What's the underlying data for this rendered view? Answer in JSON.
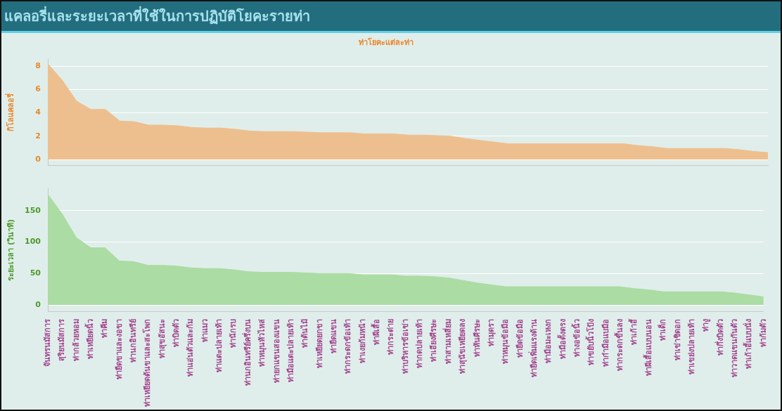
{
  "chart_data": [
    {
      "type": "area",
      "title": "แคลอรี่และระยะเวลาที่ใช้ในการปฏิบัติโยคะรายท่า",
      "subtitle": "ท่าโยคะแต่ละท่า",
      "ylabel": "กิโลแคลอรี่",
      "tick_labels": "y",
      "grid": "y",
      "ylim": [
        -0.5,
        8.6
      ],
      "yticks": [
        0,
        2,
        4,
        6,
        8
      ],
      "series": [
        {
          "color": "#eebf8e",
          "values": [
            8.2,
            6.8,
            5.0,
            4.3,
            4.3,
            3.3,
            3.25,
            2.95,
            2.95,
            2.9,
            2.75,
            2.7,
            2.7,
            2.6,
            2.45,
            2.4,
            2.4,
            2.4,
            2.35,
            2.3,
            2.3,
            2.3,
            2.2,
            2.2,
            2.2,
            2.1,
            2.1,
            2.05,
            2.0,
            1.8,
            1.65,
            1.5,
            1.35,
            1.35,
            1.35,
            1.35,
            1.35,
            1.35,
            1.35,
            1.35,
            1.35,
            1.2,
            1.1,
            0.95,
            0.95,
            0.95,
            0.95,
            0.95,
            0.85,
            0.7,
            0.6
          ]
        }
      ]
    },
    {
      "type": "area",
      "ylabel": "ระยะเวลา (วินาที)",
      "grid": "y",
      "ylim": [
        -10,
        185
      ],
      "yticks": [
        0,
        50,
        100,
        150
      ],
      "categories": [
        "จันทรนมัสการ",
        "สุริยนมัสการ",
        "ท่ากล้วยหอม",
        "ท่าเหยียดนิ้ว",
        "ท่าคีม",
        "ท่ายืดขาและงอขา",
        "ท่านกอินทรีย์",
        "ท่าเหยียดต้นขาและสะโพก",
        "ท่าสุขอัสนะ",
        "ท่าบิดตัว",
        "ท่าแอ่นตัวและก้ม",
        "ท่าแมว",
        "ท่าแตะปลายเท้า",
        "ท่านักรบ",
        "ท่านกอินทรีย์ครึ่งบน",
        "ท่าหมุนหัวไหล่",
        "ท่ายกแขนสองแขน",
        "ท่ามือแตะปลายเท้า",
        "ท่าต้นไม้",
        "ท่าเหยียดยกขา",
        "ท่ายืดแขน",
        "ท่ากระดกข้อเท้า",
        "ท่าเงยก้มหน้า",
        "ท่าผีเสื้อ",
        "ท่ากระต่าย",
        "ท่าบริหารข้อเข่า",
        "ท่ากดปลายเท้า",
        "ท่าเอียงศีรษะ",
        "ท่าสามเหลี่ยม",
        "ท่าสุนัขเหยียดลง",
        "ท่าหันศีรษะ",
        "ท่ามุดรา",
        "ท่าหมุนข้อมือ",
        "ท่ายืดข้อมือ",
        "ท่ายืดเพิ่มแรงด้าน",
        "ท่ามือมะเหงก",
        "ท่ามือตั้งตรง",
        "ท่างอข้อนิ้ว",
        "ท่าขยับนิ้วโป้ง",
        "ท่ากำมือแบมือ",
        "ท่ากระดกขึ้นลง",
        "ท่าเก้าอี้",
        "ท่าผีเสื้อแบบนอน",
        "ท่าเด็ก",
        "ท่าเข่าชิดอก",
        "ท่าเขย่งปลายเท้า",
        "ท่างู",
        "ท่ากึ่งบิดตัว",
        "ท่าวาดแขนกันตัว",
        "ท่าเก้าอี้แบบนั่ง",
        "ท่าก้มตัว"
      ],
      "series": [
        {
          "color": "#abdca3",
          "values": [
            176,
            145,
            107,
            91,
            91,
            70,
            69,
            63,
            63,
            62,
            59,
            58,
            58,
            56,
            53,
            52,
            52,
            52,
            51,
            50,
            50,
            50,
            48,
            48,
            48,
            46,
            46,
            45,
            43,
            39,
            35,
            32,
            29,
            29,
            29,
            29,
            29,
            29,
            29,
            29,
            29,
            26,
            24,
            21,
            21,
            21,
            21,
            21,
            19,
            16,
            13
          ]
        }
      ]
    }
  ]
}
